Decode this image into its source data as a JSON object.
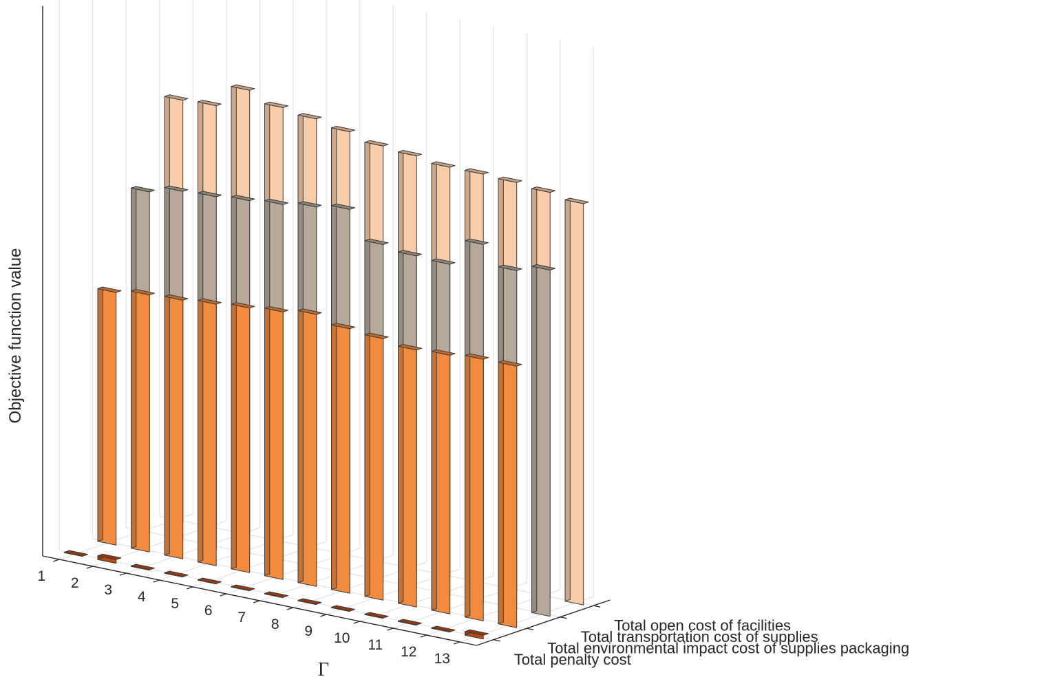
{
  "chart_data": {
    "type": "bar3d",
    "title": "",
    "xlabel": "Γ",
    "ylabel": "",
    "zlabel": "Objective function value",
    "x": [
      "1",
      "2",
      "3",
      "4",
      "5",
      "6",
      "7",
      "8",
      "9",
      "10",
      "11",
      "12",
      "13"
    ],
    "grid": true,
    "value_unit": "relative height (no z tick labels shown)",
    "series": [
      {
        "name": "Total penalty cost",
        "color": "#BF4A12",
        "values": [
          0.3,
          2.5,
          0.3,
          0.3,
          0.3,
          0.3,
          0.3,
          0.3,
          0.3,
          0.3,
          0.3,
          0.3,
          2.5
        ]
      },
      {
        "name": "Total environmental impact cost of supplies packaging",
        "color": "#F28B3D",
        "values": [
          170,
          173,
          174,
          176,
          178,
          180,
          183,
          178,
          176,
          173,
          174,
          176,
          176
        ]
      },
      {
        "name": "Total transportation cost of supplies",
        "color": "#B7A99A",
        "values": [
          230,
          235,
          236,
          238,
          240,
          243,
          246,
          227,
          224,
          223,
          241,
          228,
          233
        ]
      },
      {
        "name": "Total open cost of facilities",
        "color": "#F9CDAA",
        "values": [
          284,
          285,
          300,
          293,
          290,
          286,
          281,
          279,
          276,
          276,
          275,
          273,
          270
        ]
      }
    ]
  }
}
